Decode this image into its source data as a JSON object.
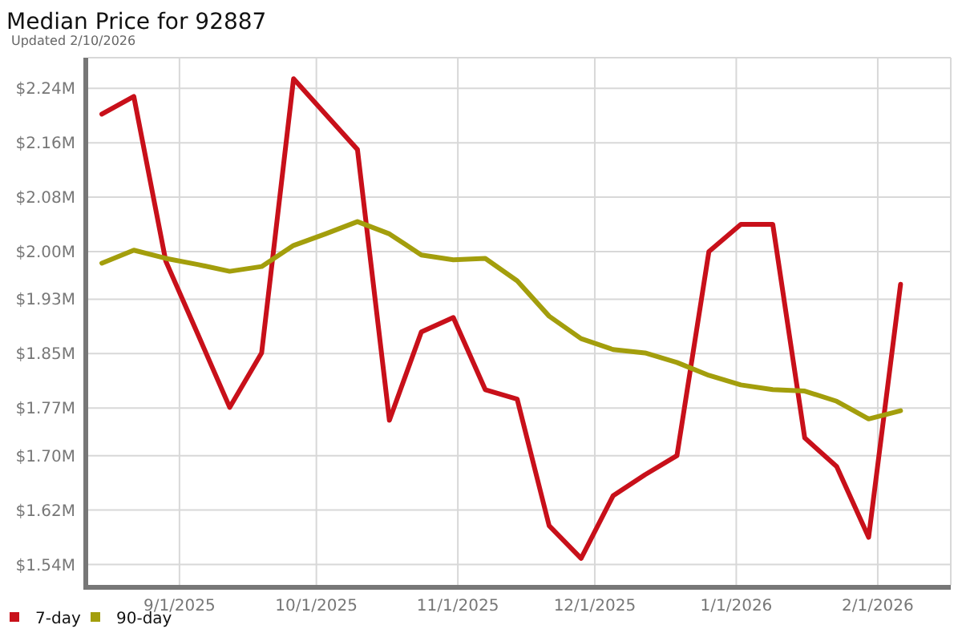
{
  "chart_data": {
    "type": "line",
    "title": "Median Price for 92887",
    "subtitle": "Updated 2/10/2026",
    "x": [
      "2025-08-15",
      "2025-08-22",
      "2025-08-29",
      "2025-09-05",
      "2025-09-12",
      "2025-09-19",
      "2025-09-26",
      "2025-10-03",
      "2025-10-10",
      "2025-10-17",
      "2025-10-24",
      "2025-10-31",
      "2025-11-07",
      "2025-11-14",
      "2025-11-21",
      "2025-11-28",
      "2025-12-05",
      "2025-12-12",
      "2025-12-19",
      "2025-12-26",
      "2026-01-02",
      "2026-01-09",
      "2026-01-16",
      "2026-01-23",
      "2026-01-30",
      "2026-02-06"
    ],
    "series": [
      {
        "name": "7-day",
        "color": "#c8101a",
        "values": [
          2.202,
          2.228,
          1.986,
          1.879,
          1.771,
          1.851,
          2.254,
          2.202,
          2.15,
          1.752,
          1.882,
          1.903,
          1.797,
          1.783,
          1.597,
          1.549,
          1.641,
          1.672,
          1.7,
          2.0,
          2.04,
          2.04,
          1.726,
          1.684,
          1.58,
          1.952
        ]
      },
      {
        "name": "90-day",
        "color": "#a39e0c",
        "values": [
          1.983,
          2.002,
          1.99,
          1.981,
          1.971,
          1.978,
          2.009,
          2.026,
          2.044,
          2.026,
          1.995,
          1.988,
          1.99,
          1.957,
          1.905,
          1.872,
          1.856,
          1.851,
          1.837,
          1.818,
          1.804,
          1.797,
          1.795,
          1.78,
          1.754,
          1.766
        ]
      }
    ],
    "xlim": [
      "2025-08-12",
      "2026-02-17"
    ],
    "xticks": [
      {
        "value": "2025-09-01",
        "label": "9/1/2025"
      },
      {
        "value": "2025-10-01",
        "label": "10/1/2025"
      },
      {
        "value": "2025-11-01",
        "label": "11/1/2025"
      },
      {
        "value": "2025-12-01",
        "label": "12/1/2025"
      },
      {
        "value": "2026-01-01",
        "label": "1/1/2026"
      },
      {
        "value": "2026-02-01",
        "label": "2/1/2026"
      }
    ],
    "ylim": [
      1.51,
      2.285
    ],
    "yticks": [
      {
        "value": 1.54,
        "label": "$1.54M"
      },
      {
        "value": 1.62,
        "label": "$1.62M"
      },
      {
        "value": 1.7,
        "label": "$1.70M"
      },
      {
        "value": 1.77,
        "label": "$1.77M"
      },
      {
        "value": 1.85,
        "label": "$1.85M"
      },
      {
        "value": 1.93,
        "label": "$1.93M"
      },
      {
        "value": 2.0,
        "label": "$2.00M"
      },
      {
        "value": 2.08,
        "label": "$2.08M"
      },
      {
        "value": 2.16,
        "label": "$2.16M"
      },
      {
        "value": 2.24,
        "label": "$2.24M"
      }
    ],
    "grid": true,
    "legend": "bottom",
    "marker": "none",
    "line_style": "solid"
  }
}
